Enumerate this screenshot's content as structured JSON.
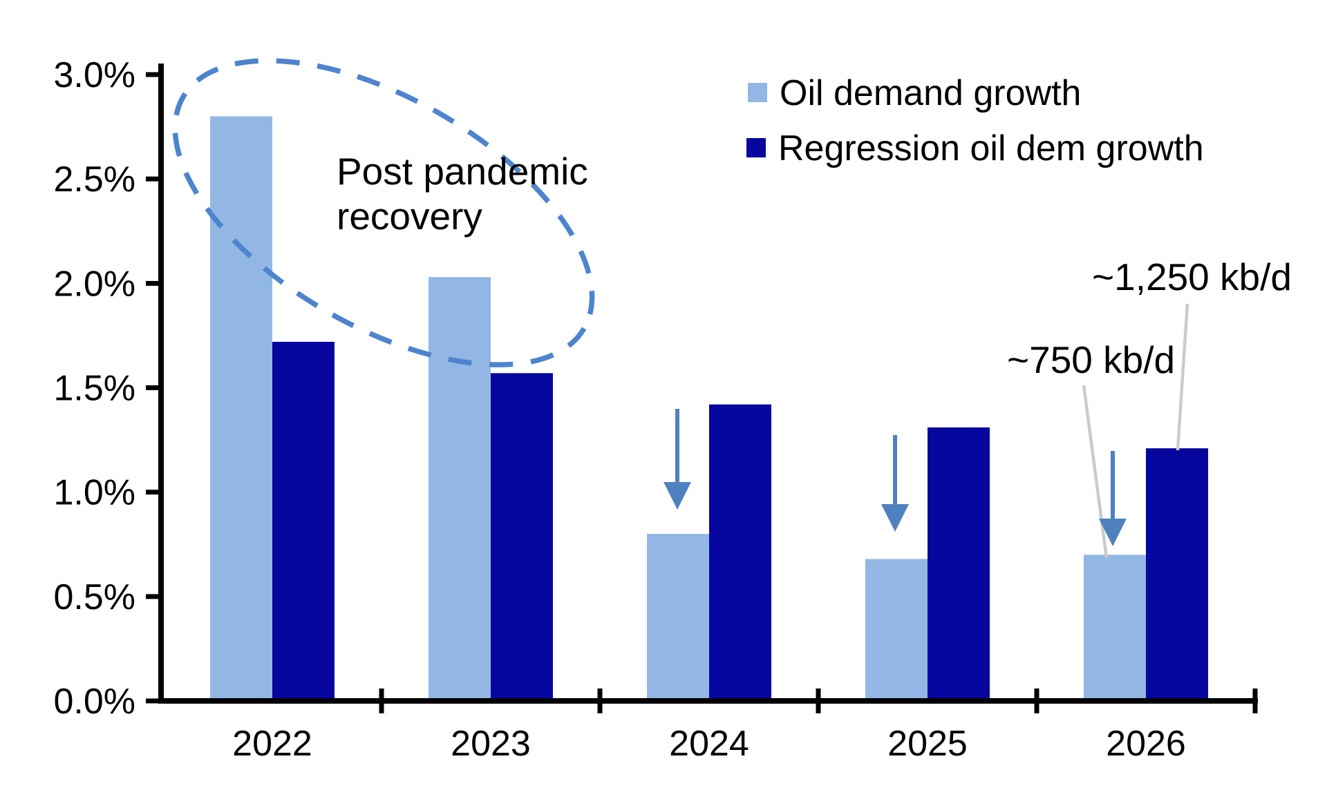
{
  "chart_data": {
    "type": "bar",
    "title": "",
    "xlabel": "",
    "ylabel": "",
    "categories": [
      "2022",
      "2023",
      "2024",
      "2025",
      "2026"
    ],
    "series": [
      {
        "name": "Oil demand growth",
        "color": "#92B7E4",
        "values": [
          2.8,
          2.03,
          0.8,
          0.68,
          0.7
        ]
      },
      {
        "name": "Regression oil dem growth",
        "color": "#0707A0",
        "values": [
          1.72,
          1.57,
          1.42,
          1.31,
          1.21
        ]
      }
    ],
    "y_axis": {
      "min": 0,
      "max": 3,
      "step": 0.5,
      "unit": "%",
      "tick_labels": [
        "0.0%",
        "0.5%",
        "1.0%",
        "1.5%",
        "2.0%",
        "2.5%",
        "3.0%"
      ]
    },
    "grid": false,
    "legend_position": "top-right",
    "annotations": {
      "ellipse_label": "Post pandemic recovery",
      "ellipse_label_lines": [
        "Post pandemic",
        "recovery"
      ],
      "ellipse_over_years": [
        "2022",
        "2023"
      ],
      "down_arrow_years": [
        "2024",
        "2025",
        "2026"
      ],
      "callouts": [
        {
          "text": "~750 kb/d",
          "target": "2026 Oil demand growth bar"
        },
        {
          "text": "~1,250 kb/d",
          "target": "2026 Regression oil dem growth bar"
        }
      ]
    },
    "colors": {
      "light_series": "#92B7E4",
      "dark_series": "#0707A0",
      "arrow": "#4E81BD",
      "ellipse": "#4D84CD",
      "leader_line": "#CBCBCB",
      "axis": "#000000",
      "text": "#000000",
      "background": "#FFFFFF"
    }
  }
}
